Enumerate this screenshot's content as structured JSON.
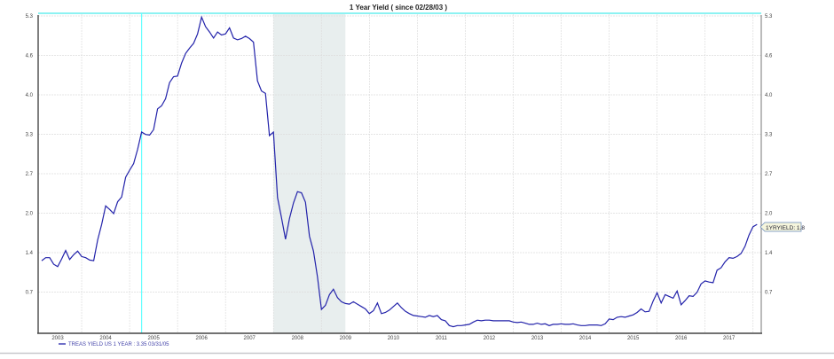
{
  "chart_data": {
    "type": "line",
    "title": "1 Year Yield ( since 02/28/03 )",
    "xlabel": "",
    "ylabel": "",
    "x_ticks": [
      "2003",
      "2004",
      "2005",
      "2006",
      "2007",
      "2008",
      "2009",
      "2010",
      "2011",
      "2012",
      "2013",
      "2014",
      "2015",
      "2016",
      "2017"
    ],
    "y_ticks": [
      "5.3",
      "4.6",
      "4.0",
      "3.3",
      "2.7",
      "2.0",
      "1.4",
      "0.7"
    ],
    "ylim": [
      0,
      5.3
    ],
    "xlim": [
      "2003-01",
      "2018-02"
    ],
    "grid": true,
    "legend_placement": "bottom-left",
    "start": "2003-02",
    "frequency": "monthly",
    "series": [
      {
        "name": "TREAS YIELD US  1 YEAR",
        "color": "#2222aa",
        "values": [
          1.19,
          1.24,
          1.24,
          1.13,
          1.09,
          1.22,
          1.36,
          1.21,
          1.29,
          1.35,
          1.26,
          1.24,
          1.2,
          1.19,
          1.54,
          1.8,
          2.11,
          2.05,
          1.98,
          2.18,
          2.26,
          2.59,
          2.71,
          2.82,
          3.06,
          3.35,
          3.31,
          3.3,
          3.39,
          3.74,
          3.79,
          3.91,
          4.18,
          4.28,
          4.29,
          4.51,
          4.67,
          4.76,
          4.84,
          5.0,
          5.28,
          5.12,
          5.03,
          4.93,
          5.03,
          4.98,
          5.0,
          5.1,
          4.93,
          4.9,
          4.92,
          4.96,
          4.92,
          4.86,
          4.21,
          4.04,
          4.0,
          3.29,
          3.35,
          2.25,
          1.91,
          1.55,
          1.9,
          2.16,
          2.35,
          2.33,
          2.17,
          1.6,
          1.35,
          0.92,
          0.37,
          0.44,
          0.62,
          0.71,
          0.57,
          0.5,
          0.47,
          0.46,
          0.5,
          0.46,
          0.42,
          0.38,
          0.3,
          0.35,
          0.48,
          0.3,
          0.32,
          0.36,
          0.42,
          0.48,
          0.4,
          0.34,
          0.3,
          0.27,
          0.26,
          0.25,
          0.24,
          0.27,
          0.25,
          0.27,
          0.2,
          0.18,
          0.1,
          0.08,
          0.1,
          0.1,
          0.11,
          0.12,
          0.16,
          0.19,
          0.18,
          0.19,
          0.19,
          0.18,
          0.18,
          0.18,
          0.18,
          0.18,
          0.16,
          0.15,
          0.16,
          0.14,
          0.12,
          0.12,
          0.14,
          0.12,
          0.13,
          0.1,
          0.12,
          0.12,
          0.13,
          0.12,
          0.12,
          0.13,
          0.11,
          0.1,
          0.1,
          0.11,
          0.11,
          0.11,
          0.1,
          0.13,
          0.21,
          0.2,
          0.24,
          0.25,
          0.24,
          0.26,
          0.28,
          0.32,
          0.38,
          0.33,
          0.34,
          0.51,
          0.65,
          0.48,
          0.62,
          0.59,
          0.56,
          0.68,
          0.45,
          0.52,
          0.6,
          0.59,
          0.66,
          0.8,
          0.85,
          0.83,
          0.82,
          1.03,
          1.07,
          1.17,
          1.24,
          1.23,
          1.26,
          1.31,
          1.43,
          1.62,
          1.76,
          1.8
        ]
      }
    ],
    "recession_shading": {
      "from": "2008-01",
      "to": "2009-06",
      "color": "#e8eeee"
    },
    "crosshair": {
      "date": "2005-03",
      "color": "#66ffff"
    },
    "legend_text": "TREAS YIELD US  1 YEAR  : 3.35 03/31/05",
    "end_label": "1YRYIELD: 1.8"
  }
}
